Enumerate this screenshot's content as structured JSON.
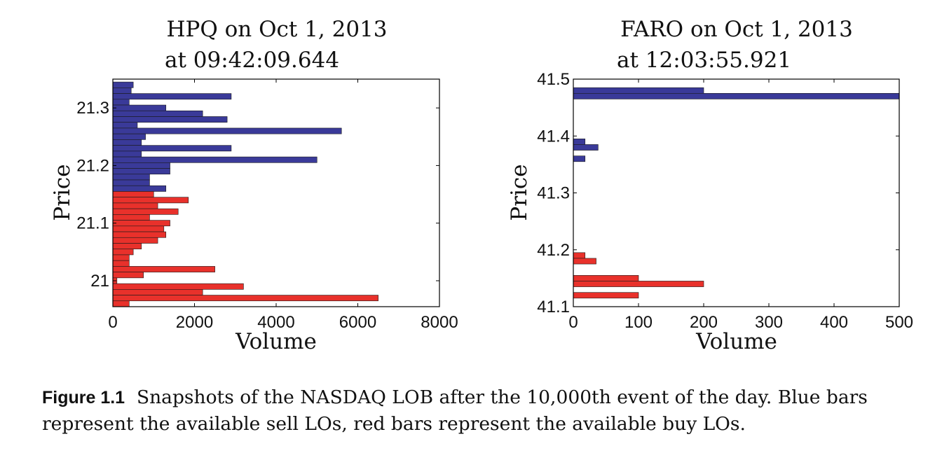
{
  "chart_data": [
    {
      "type": "bar",
      "orientation": "horizontal",
      "title_lines": [
        "HPQ on Oct 1, 2013",
        "at 09:42:09.644"
      ],
      "xlabel": "Volume",
      "ylabel": "Price",
      "xlim": [
        0,
        8000
      ],
      "ylim": [
        20.955,
        21.35
      ],
      "xticks": [
        "0",
        "2000",
        "4000",
        "6000",
        "8000"
      ],
      "yticks": [
        "21",
        "21.1",
        "21.2",
        "21.3"
      ],
      "ytick_values": [
        21,
        21.1,
        21.2,
        21.3
      ],
      "tick_step": 0.01,
      "colors": {
        "sell": "#3a3a99",
        "buy": "#e8312b"
      },
      "series": [
        {
          "side": "sell",
          "prices": [
            21.34,
            21.33,
            21.32,
            21.31,
            21.3,
            21.29,
            21.28,
            21.27,
            21.26,
            21.25,
            21.24,
            21.23,
            21.22,
            21.21,
            21.2,
            21.19,
            21.18,
            21.17,
            21.16
          ],
          "values": [
            500,
            450,
            2900,
            400,
            1300,
            2200,
            2800,
            600,
            5600,
            800,
            700,
            2900,
            700,
            5000,
            1400,
            1400,
            900,
            900,
            1300
          ]
        },
        {
          "side": "buy",
          "prices": [
            21.15,
            21.14,
            21.13,
            21.12,
            21.11,
            21.1,
            21.09,
            21.08,
            21.07,
            21.06,
            21.05,
            21.04,
            21.03,
            21.02,
            21.01,
            21.0,
            20.99,
            20.98,
            20.97,
            20.96
          ],
          "values": [
            1000,
            1850,
            1100,
            1600,
            900,
            1400,
            1250,
            1300,
            1100,
            700,
            500,
            400,
            400,
            2500,
            750,
            100,
            3200,
            2200,
            6500,
            400
          ]
        }
      ]
    },
    {
      "type": "bar",
      "orientation": "horizontal",
      "title_lines": [
        "FARO on Oct 1, 2013",
        "at 12:03:55.921"
      ],
      "xlabel": "Volume",
      "ylabel": "Price",
      "xlim": [
        0,
        500
      ],
      "ylim": [
        41.1,
        41.5
      ],
      "xticks": [
        "0",
        "100",
        "200",
        "300",
        "400",
        "500"
      ],
      "yticks": [
        "41.1",
        "41.2",
        "41.3",
        "41.4",
        "41.5"
      ],
      "ytick_values": [
        41.1,
        41.2,
        41.3,
        41.4,
        41.5
      ],
      "tick_step": 0.01,
      "colors": {
        "sell": "#3a3a99",
        "buy": "#e8312b"
      },
      "series": [
        {
          "side": "sell",
          "prices": [
            41.48,
            41.47,
            41.39,
            41.38,
            41.36
          ],
          "values": [
            200,
            500,
            18,
            38,
            18
          ]
        },
        {
          "side": "buy",
          "prices": [
            41.19,
            41.18,
            41.15,
            41.14,
            41.12
          ],
          "values": [
            18,
            35,
            100,
            200,
            100
          ]
        }
      ]
    }
  ],
  "caption": {
    "label": "Figure 1.1",
    "text": "Snapshots of the NASDAQ LOB after the 10,000th event of the day. Blue bars represent the available sell LOs, red bars represent the available buy LOs."
  }
}
